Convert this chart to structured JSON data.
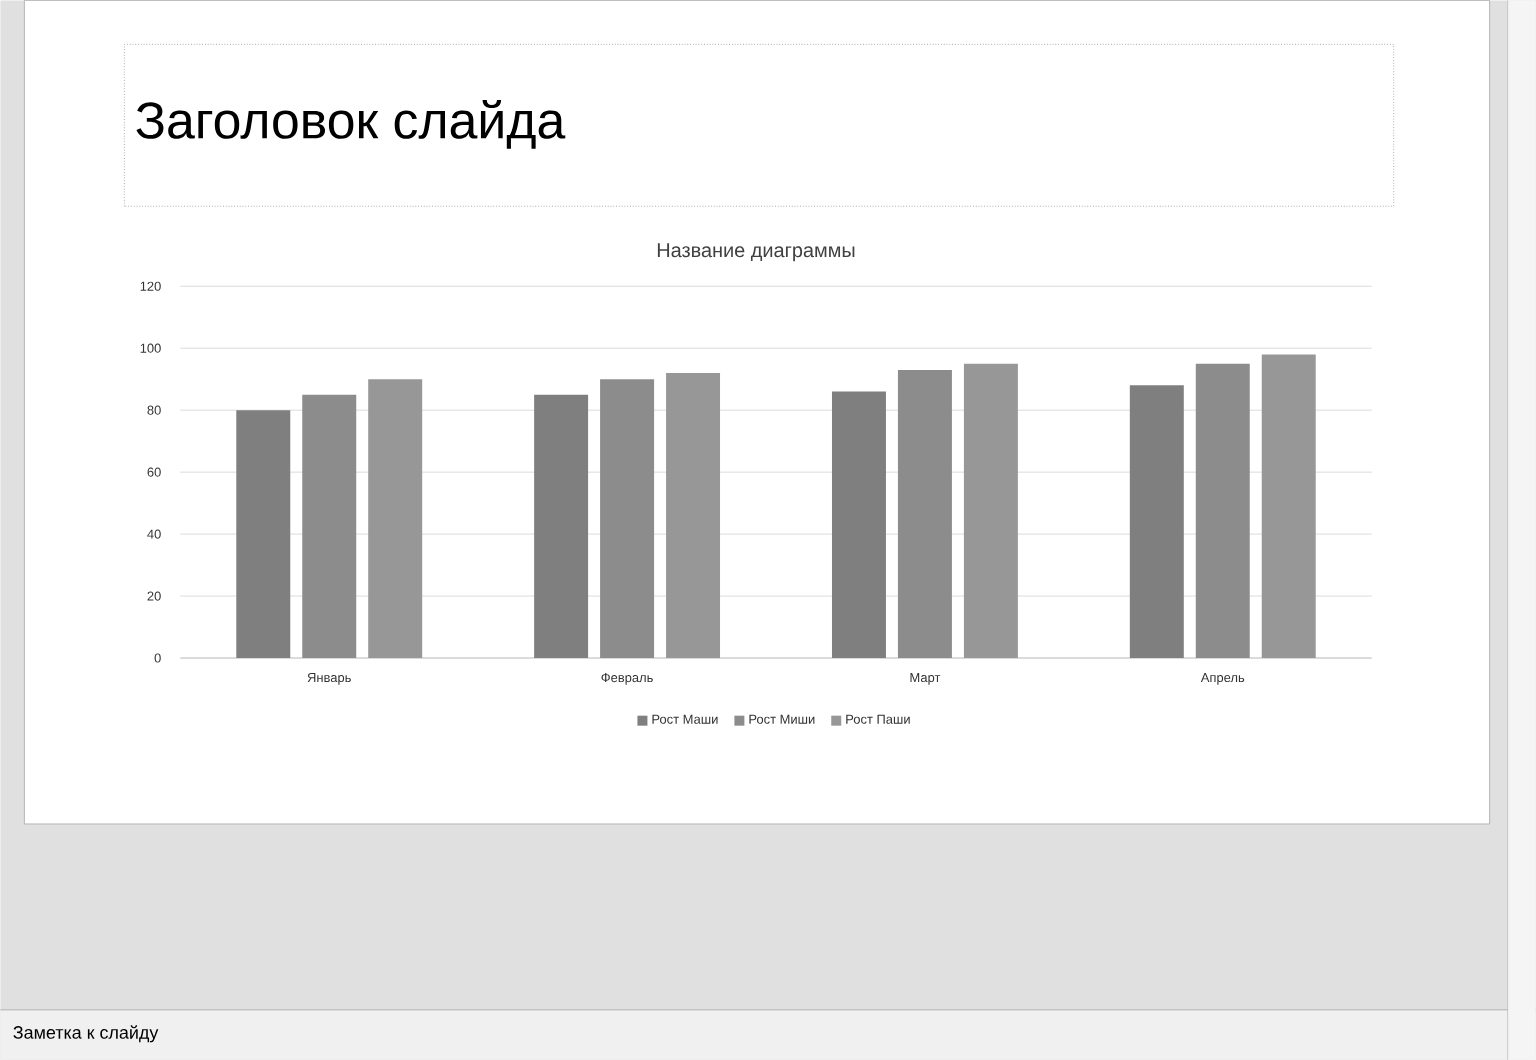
{
  "chart_data": {
    "type": "bar",
    "title": "Название диаграммы",
    "annotations": [
      "Заголовок слайда",
      "Заметка к слайду"
    ],
    "categories": [
      "Январь",
      "Февраль",
      "Март",
      "Апрель"
    ],
    "series": [
      {
        "name": "Рост Маши",
        "color": "#7f7f7f",
        "values": [
          80,
          85,
          86,
          88
        ]
      },
      {
        "name": "Рост Миши",
        "color": "#8c8c8c",
        "values": [
          85,
          90,
          93,
          95
        ]
      },
      {
        "name": "Рост Паши",
        "color": "#979797",
        "values": [
          90,
          92,
          95,
          98
        ]
      }
    ],
    "ylim": [
      0,
      120
    ],
    "yticks": [
      0,
      20,
      40,
      60,
      80,
      100,
      120
    ],
    "grid": "y",
    "legend": "bottom"
  }
}
